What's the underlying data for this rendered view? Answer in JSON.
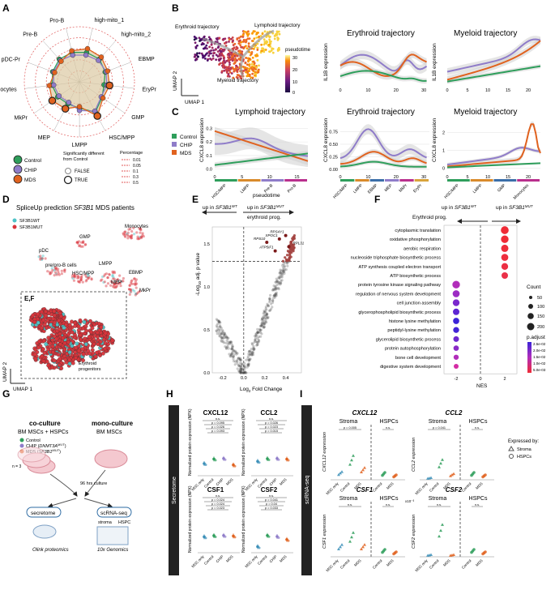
{
  "panel_letters": [
    "A",
    "B",
    "C",
    "D",
    "E",
    "F",
    "G",
    "H",
    "I"
  ],
  "panelA": {
    "axes": [
      "high-mito_1",
      "high-mito_2",
      "EBMP",
      "EryPr",
      "GMP",
      "HSC/MPP",
      "LMPP",
      "MEP",
      "MkPr",
      "Monocytes",
      "pDC-Pr",
      "Pre-B",
      "Pro-B"
    ],
    "legend_groups": [
      "Control",
      "CHIP",
      "MDS"
    ],
    "legend_sig_title": "Significantly different from Control",
    "legend_sig": [
      "FALSE",
      "TRUE"
    ],
    "legend_pct_title": "Percentage",
    "legend_pct": [
      "0.01",
      "0.05",
      "0.1",
      "0.3",
      "0.5"
    ]
  },
  "panelB": {
    "umap_labels": {
      "ery": "Erythroid trajectory",
      "lym": "Lymphoid trajectory",
      "mye": "Myeloid trajectory",
      "u1": "UMAP 1",
      "u2": "UMAP 2",
      "pt": "pseudotime"
    },
    "colorbar_ticks": [
      "30",
      "20",
      "10",
      "0"
    ],
    "titles": [
      "Erythroid trajectory",
      "Myeloid trajectory"
    ],
    "ylabel": "IL1B expression",
    "ery_xticks": [
      "0",
      "10",
      "20",
      "30"
    ],
    "mye_xticks": [
      "0",
      "5",
      "10",
      "15",
      "20"
    ]
  },
  "panelC": {
    "titles": [
      "Lymphoid trajectory",
      "Erythroid trajectory",
      "Myeloid trajectory"
    ],
    "ylabel": "CXCL8 expression",
    "xlabel": "pseudotime",
    "legend": [
      "Control",
      "CHIP",
      "MDS"
    ],
    "lym_xticks": [
      "0",
      "5",
      "10",
      "15"
    ],
    "lym_yticks": [
      "0.0",
      "0.1",
      "0.2",
      "0.3"
    ],
    "ery_xticks": [
      "0",
      "10",
      "20",
      "30"
    ],
    "ery_yticks": [
      "0.00",
      "0.25",
      "0.50",
      "0.75"
    ],
    "mye_xticks": [
      "0",
      "5",
      "10",
      "15",
      "20"
    ],
    "mye_yticks": [
      "0",
      "1",
      "2"
    ],
    "lym_cells": [
      "HSC/MPP",
      "LMPP",
      "Pre-B",
      "Pro-B"
    ],
    "ery_cells": [
      "HSC/MPP",
      "LMPP",
      "EBMP",
      "MEP",
      "MkPr",
      "EryPr"
    ],
    "mye_cells": [
      "HSC/MPP",
      "LMPP",
      "GMP",
      "Monocytes"
    ]
  },
  "panelD": {
    "title": "SpliceUp prediction SF3B1 MDS patients",
    "legend": [
      "SF3B1WT",
      "SF3B1MUT"
    ],
    "labels": [
      "Monocytes",
      "GMP",
      "pDC",
      "pre/pro-B cells",
      "HSC/MPP",
      "MEP",
      "EBMP",
      "LMPP",
      "MkPr",
      "E,F",
      "Erythroid progenitors",
      "UMAP 1",
      "UMAP 2"
    ]
  },
  "panelE": {
    "left_header": "up in SF3B1WT erythroid prog.",
    "right_header": "up in SF3B1MUT erythroid prog.",
    "ylabel": "-Log10 adj. p value",
    "xlabel": "Log2 Fold Change",
    "xticks": [
      "-0.2",
      "0.0",
      "0.2",
      "0.4"
    ],
    "yticks": [
      "0.0",
      "0.5",
      "1.0",
      "1.5"
    ],
    "genes": [
      "RPS10",
      "XPOC1",
      "RPS4Y1",
      "RPL31",
      "ATP5IF1"
    ]
  },
  "panelF": {
    "left_header": "up in SF3B1WT Erythroid prog.",
    "right_header": "up in SF3B1MUT",
    "terms": [
      "cytoplasmic translation",
      "oxidative phosphorylation",
      "aerobic respiration",
      "nucleoside triphosphate biosynthetic process",
      "ATP synthesis coupled electron transport",
      "ATP biosynthetic process",
      "protein tyrosine kinase signaling pathway",
      "regulation of nervous system development",
      "cell junction assembly",
      "glycerophospholipid biosynthetic process",
      "histone lysine methylation",
      "peptidyl-lysine methylation",
      "glycerolipid biosynthetic process",
      "protein autophosphorylation",
      "bone cell development",
      "digestive system development"
    ],
    "xlabel": "NES",
    "xticks": [
      "-2",
      "0",
      "2"
    ],
    "count_title": "Count",
    "count_vals": [
      "50",
      "100",
      "150",
      "200"
    ],
    "padj_title": "p.adjust",
    "padj_vals": [
      "2.5e-02",
      "2.0e-02",
      "1.5e-02",
      "1.0e-02",
      "5.0e-03"
    ]
  },
  "panelG": {
    "co_title": "co-culture",
    "co_sub": "BM MSCs + HSPCs",
    "mono_title": "mono-culture",
    "mono_sub": "BM MSCs",
    "groups": [
      "Control",
      "CHIP (DNMT3AMUT)",
      "MDS (SF3B1MUT)"
    ],
    "n": "n = 3",
    "culture": "96 hrs culture",
    "secretome": "secretome",
    "scrna": "scRNA-seq",
    "stroma": "stroma",
    "hspc": "HSPC",
    "olink": "Olink proteomics",
    "tenx": "10x Genomics"
  },
  "panelH": {
    "side_label": "Secretome",
    "ylabel": "Normalized protein expression (NPX)",
    "titles": [
      "CXCL12",
      "CCL2",
      "CSF1",
      "CSF2"
    ],
    "xcats": [
      "MSC only",
      "Control",
      "CHIP",
      "MDS"
    ],
    "pvals": {
      "CXCL12": [
        "n.s.",
        "p = 0.095",
        "p = 0.026",
        "p = 0.093"
      ],
      "CCL2": [
        "n.s.",
        "p = 0.026",
        "p = 0.023",
        "p = 0.015"
      ],
      "CSF1": [
        "n.s.",
        "p = 0.024",
        "p = 0.024",
        "p = 0.023"
      ],
      "CSF2": [
        "n.s.",
        "p = 0.041",
        "p = 0.04",
        "p = 0.033"
      ]
    }
  },
  "panelI": {
    "side_label": "scRNA-seq",
    "stroma": "Stroma",
    "hspcs": "HSPCs",
    "titles": [
      "CXCL12",
      "CCL2",
      "CSF1",
      "CSF2"
    ],
    "ylabels": [
      "CXCL12 expression",
      "CCL2 expression",
      "CSF1 expression",
      "CSF2 expression"
    ],
    "legend_title": "Expressed by:",
    "legend": [
      "Stroma",
      "HSPCs"
    ],
    "x_stroma": [
      "MSC only",
      "Control",
      "MDS"
    ],
    "x_hspc": [
      "Control",
      "MDS"
    ],
    "pvals": [
      "n.s.",
      "p = 0.005",
      "p = 0.113",
      "n.s.",
      "p = 0.041",
      "n.s."
    ],
    "csf2_scale": "x10⁻³"
  },
  "colors": {
    "control": "#2e9e5b",
    "chip": "#8f7cc9",
    "mds": "#e0621f",
    "sig": "#e0621f"
  }
}
